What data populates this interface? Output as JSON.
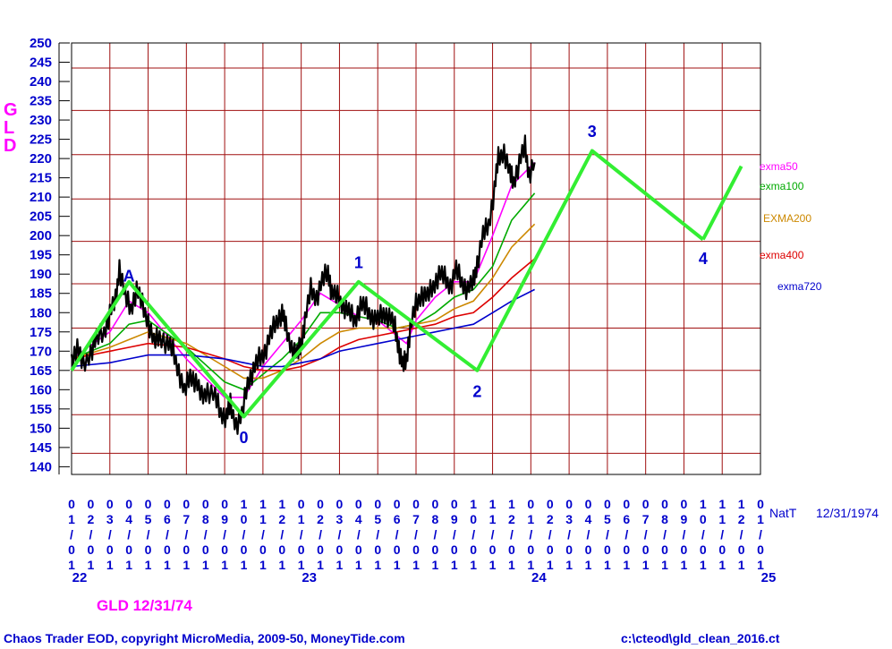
{
  "chart_data": {
    "type": "line",
    "ticker_side": [
      "G",
      "L",
      "D"
    ],
    "y_ticks": [
      140,
      145,
      150,
      155,
      160,
      165,
      170,
      175,
      180,
      185,
      190,
      195,
      200,
      205,
      210,
      215,
      220,
      225,
      230,
      235,
      240,
      245,
      250
    ],
    "ylim": [
      138,
      250
    ],
    "month_ticks": [
      "01/01",
      "02/01",
      "03/01",
      "04/01",
      "05/01",
      "06/01",
      "07/01",
      "08/01",
      "09/01",
      "10/01",
      "11/01",
      "12/01",
      "01/01",
      "02/01",
      "03/01",
      "04/01",
      "05/01",
      "06/01",
      "07/01",
      "08/01",
      "09/01",
      "10/01",
      "11/01",
      "12/01",
      "01/01",
      "02/01",
      "03/01",
      "04/01",
      "05/01",
      "06/01",
      "07/01",
      "08/01",
      "09/01",
      "10/01",
      "11/01",
      "12/01",
      "01/01"
    ],
    "year_labels": [
      {
        "text": "22",
        "month_index": 0
      },
      {
        "text": "23",
        "month_index": 12
      },
      {
        "text": "24",
        "month_index": 24
      },
      {
        "text": "25",
        "month_index": 36
      }
    ],
    "x_axis_label": "NatT",
    "x_axis_date": "12/31/1974",
    "grid": true,
    "colors": {
      "grid": "#a01010",
      "price": "#000000",
      "wave": "#33ee33",
      "axis_text": "#0000cc",
      "magenta": "#ff00ff"
    },
    "price_path": [
      [
        0,
        168
      ],
      [
        0.3,
        171
      ],
      [
        0.6,
        166
      ],
      [
        1,
        170
      ],
      [
        1.3,
        173
      ],
      [
        1.7,
        175
      ],
      [
        2,
        180
      ],
      [
        2.3,
        183
      ],
      [
        2.5,
        192
      ],
      [
        2.8,
        184
      ],
      [
        3.1,
        181
      ],
      [
        3.4,
        186
      ],
      [
        3.7,
        182
      ],
      [
        4,
        178
      ],
      [
        4.3,
        172
      ],
      [
        4.6,
        174
      ],
      [
        5,
        172
      ],
      [
        5.3,
        170
      ],
      [
        5.6,
        165
      ],
      [
        5.9,
        159
      ],
      [
        6.2,
        164
      ],
      [
        6.5,
        162
      ],
      [
        6.8,
        158
      ],
      [
        7.1,
        160
      ],
      [
        7.5,
        158
      ],
      [
        7.8,
        154
      ],
      [
        8.1,
        153
      ],
      [
        8.3,
        156
      ],
      [
        8.6,
        151
      ],
      [
        8.9,
        153
      ],
      [
        9.2,
        162
      ],
      [
        9.5,
        165
      ],
      [
        9.8,
        168
      ],
      [
        10.1,
        170
      ],
      [
        10.4,
        174
      ],
      [
        10.7,
        178
      ],
      [
        11,
        180
      ],
      [
        11.2,
        176
      ],
      [
        11.5,
        171
      ],
      [
        11.8,
        169
      ],
      [
        12,
        172
      ],
      [
        12.2,
        178
      ],
      [
        12.5,
        186
      ],
      [
        12.8,
        184
      ],
      [
        13.1,
        188
      ],
      [
        13.4,
        191
      ],
      [
        13.6,
        185
      ],
      [
        13.9,
        184
      ],
      [
        14.2,
        182
      ],
      [
        14.5,
        180
      ],
      [
        14.8,
        178
      ],
      [
        15.1,
        182
      ],
      [
        15.4,
        181
      ],
      [
        15.7,
        179
      ],
      [
        16,
        178
      ],
      [
        16.3,
        180
      ],
      [
        16.6,
        179
      ],
      [
        16.9,
        176
      ],
      [
        17.1,
        171
      ],
      [
        17.3,
        166
      ],
      [
        17.5,
        168
      ],
      [
        17.7,
        176
      ],
      [
        18,
        182
      ],
      [
        18.3,
        185
      ],
      [
        18.6,
        184
      ],
      [
        18.9,
        187
      ],
      [
        19.2,
        190
      ],
      [
        19.5,
        189
      ],
      [
        19.8,
        187
      ],
      [
        20.1,
        191
      ],
      [
        20.4,
        188
      ],
      [
        20.7,
        186
      ],
      [
        21,
        188
      ],
      [
        21.2,
        193
      ],
      [
        21.5,
        200
      ],
      [
        21.8,
        203
      ],
      [
        22.1,
        212
      ],
      [
        22.3,
        220
      ],
      [
        22.6,
        222
      ],
      [
        22.9,
        216
      ],
      [
        23.1,
        214
      ],
      [
        23.4,
        219
      ],
      [
        23.7,
        223
      ],
      [
        23.9,
        216
      ],
      [
        24.2,
        219
      ]
    ],
    "series": [
      {
        "name": "exma50",
        "color": "#ff00ff",
        "points": [
          [
            0,
            168
          ],
          [
            2,
            175
          ],
          [
            3,
            183
          ],
          [
            4,
            180
          ],
          [
            6,
            168
          ],
          [
            8,
            158
          ],
          [
            9,
            158
          ],
          [
            10,
            166
          ],
          [
            11,
            172
          ],
          [
            12,
            178
          ],
          [
            13,
            185
          ],
          [
            14,
            182
          ],
          [
            15,
            179
          ],
          [
            16,
            178
          ],
          [
            17,
            174
          ],
          [
            17.5,
            172
          ],
          [
            18,
            178
          ],
          [
            19,
            184
          ],
          [
            20,
            188
          ],
          [
            21,
            188
          ],
          [
            22,
            200
          ],
          [
            23,
            213
          ],
          [
            24.2,
            219
          ]
        ]
      },
      {
        "name": "exma100",
        "color": "#00aa00",
        "points": [
          [
            0,
            168
          ],
          [
            2,
            172
          ],
          [
            3,
            177
          ],
          [
            4,
            178
          ],
          [
            6,
            171
          ],
          [
            8,
            162
          ],
          [
            9,
            160
          ],
          [
            10,
            164
          ],
          [
            11,
            168
          ],
          [
            12,
            173
          ],
          [
            13,
            180
          ],
          [
            14,
            180
          ],
          [
            15,
            179
          ],
          [
            16,
            178
          ],
          [
            17,
            176
          ],
          [
            18,
            177
          ],
          [
            19,
            180
          ],
          [
            20,
            184
          ],
          [
            21,
            186
          ],
          [
            22,
            192
          ],
          [
            23,
            204
          ],
          [
            24.2,
            211
          ]
        ]
      },
      {
        "name": "EXMA200",
        "color": "#cc8800",
        "points": [
          [
            0,
            168
          ],
          [
            2,
            171
          ],
          [
            3,
            173
          ],
          [
            4,
            175
          ],
          [
            6,
            172
          ],
          [
            8,
            166
          ],
          [
            9,
            163
          ],
          [
            10,
            163
          ],
          [
            11,
            165
          ],
          [
            12,
            168
          ],
          [
            13,
            172
          ],
          [
            14,
            175
          ],
          [
            15,
            176
          ],
          [
            16,
            176
          ],
          [
            17,
            176
          ],
          [
            18,
            177
          ],
          [
            19,
            178
          ],
          [
            20,
            181
          ],
          [
            21,
            183
          ],
          [
            22,
            189
          ],
          [
            23,
            197
          ],
          [
            24.2,
            203
          ]
        ]
      },
      {
        "name": "exma400",
        "color": "#dd0000",
        "points": [
          [
            0,
            168
          ],
          [
            2,
            170
          ],
          [
            3,
            171
          ],
          [
            4,
            172
          ],
          [
            6,
            171
          ],
          [
            8,
            168
          ],
          [
            9,
            166
          ],
          [
            10,
            165
          ],
          [
            11,
            165
          ],
          [
            12,
            166
          ],
          [
            13,
            168
          ],
          [
            14,
            171
          ],
          [
            15,
            173
          ],
          [
            16,
            174
          ],
          [
            17,
            175
          ],
          [
            18,
            176
          ],
          [
            19,
            177
          ],
          [
            20,
            179
          ],
          [
            21,
            180
          ],
          [
            22,
            184
          ],
          [
            23,
            189
          ],
          [
            24.2,
            194
          ]
        ]
      },
      {
        "name": "exma720",
        "color": "#0000cc",
        "points": [
          [
            0,
            166
          ],
          [
            2,
            167
          ],
          [
            3,
            168
          ],
          [
            4,
            169
          ],
          [
            6,
            169
          ],
          [
            8,
            168
          ],
          [
            9,
            167
          ],
          [
            10,
            166
          ],
          [
            11,
            166
          ],
          [
            12,
            167
          ],
          [
            13,
            168
          ],
          [
            14,
            170
          ],
          [
            15,
            171
          ],
          [
            16,
            172
          ],
          [
            17,
            173
          ],
          [
            18,
            174
          ],
          [
            19,
            175
          ],
          [
            20,
            176
          ],
          [
            21,
            177
          ],
          [
            22,
            180
          ],
          [
            23,
            183
          ],
          [
            24.2,
            186
          ]
        ]
      }
    ],
    "wave_lines": [
      [
        [
          0,
          165
        ],
        [
          3,
          188
        ],
        [
          9,
          153
        ],
        [
          15,
          188
        ],
        [
          21.2,
          165
        ],
        [
          27.2,
          222
        ],
        [
          33,
          199
        ]
      ],
      [
        [
          33,
          199
        ],
        [
          35,
          218
        ]
      ]
    ],
    "wave_labels": [
      {
        "text": "A",
        "x": 3,
        "y": 189.5
      },
      {
        "text": "0",
        "x": 9,
        "y": 147.5
      },
      {
        "text": "1",
        "x": 15,
        "y": 193
      },
      {
        "text": "2",
        "x": 21.2,
        "y": 159.5
      },
      {
        "text": "3",
        "x": 27.2,
        "y": 227
      },
      {
        "text": "4",
        "x": 33,
        "y": 194
      }
    ]
  },
  "legend": [
    {
      "label": "exma50",
      "color": "#ff00ff"
    },
    {
      "label": "exma100",
      "color": "#00aa00"
    },
    {
      "label": "EXMA200",
      "color": "#cc8800"
    },
    {
      "label": "exma400",
      "color": "#dd0000"
    },
    {
      "label": "exma720",
      "color": "#0000cc"
    }
  ],
  "tag_label": "GLD 12/31/74",
  "footer": {
    "left": "Chaos Trader EOD, copyright MicroMedia, 2009-50, MoneyTide.com",
    "right": "c:\\cteod\\gld_clean_2016.ct"
  }
}
